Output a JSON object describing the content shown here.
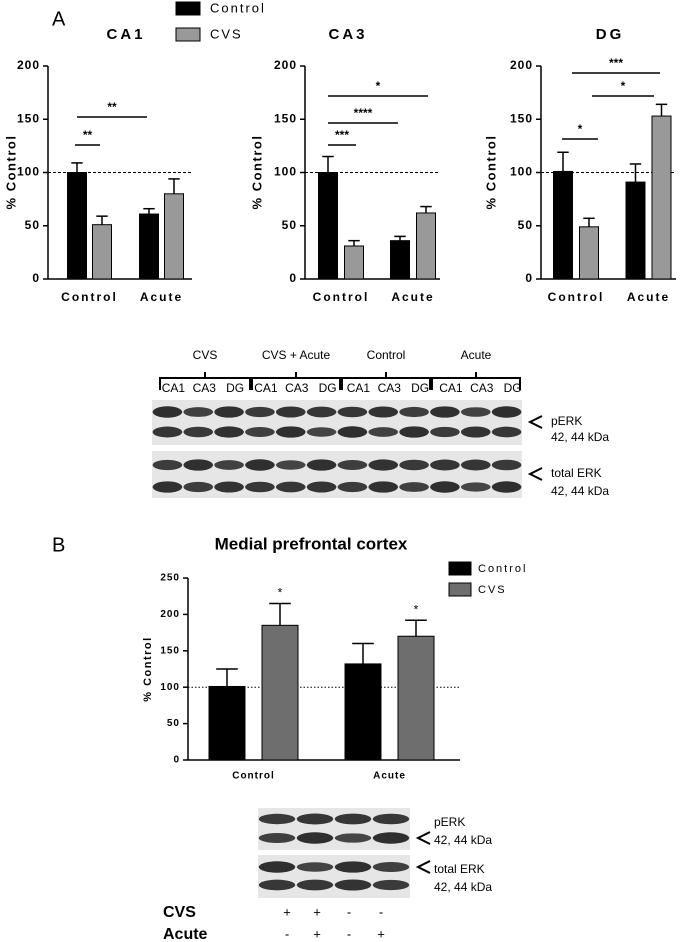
{
  "panels": [
    "A",
    "B"
  ],
  "chart_data": [
    {
      "type": "bar",
      "title": "CA1",
      "ylabel": "% Control",
      "categories": [
        "Control",
        "Acute"
      ],
      "series": [
        {
          "name": "Control",
          "color": "#000000",
          "values": [
            100,
            61
          ],
          "errors": [
            9,
            5
          ]
        },
        {
          "name": "CVS",
          "color": "#999999",
          "values": [
            51,
            80
          ],
          "errors": [
            8,
            14
          ]
        }
      ],
      "ylim": [
        0,
        200
      ],
      "yticks": [
        0,
        50,
        100,
        150,
        200
      ],
      "hline": 100,
      "legend": true,
      "significance": [
        "**",
        "**"
      ]
    },
    {
      "type": "bar",
      "title": "CA3",
      "ylabel": "% Control",
      "categories": [
        "Control",
        "Acute"
      ],
      "series": [
        {
          "color": "#000000",
          "values": [
            100,
            36
          ],
          "errors": [
            15,
            4
          ]
        },
        {
          "color": "#999999",
          "values": [
            31,
            62
          ],
          "errors": [
            5,
            6
          ]
        }
      ],
      "ylim": [
        0,
        200
      ],
      "yticks": [
        0,
        50,
        100,
        150,
        200
      ],
      "hline": 100,
      "legend": false,
      "significance": [
        "***",
        "****",
        "*"
      ]
    },
    {
      "type": "bar",
      "title": "DG",
      "ylabel": "% Control",
      "categories": [
        "Control",
        "Acute"
      ],
      "series": [
        {
          "color": "#000000",
          "values": [
            101,
            91
          ],
          "errors": [
            18,
            17
          ]
        },
        {
          "color": "#999999",
          "values": [
            49,
            153
          ],
          "errors": [
            8,
            11
          ]
        }
      ],
      "ylim": [
        0,
        200
      ],
      "yticks": [
        0,
        50,
        100,
        150,
        200
      ],
      "hline": 100,
      "legend": false,
      "significance": [
        "*",
        "*",
        "***"
      ]
    },
    {
      "type": "bar",
      "title": "Medial prefrontal cortex",
      "ylabel": "% Control",
      "categories": [
        "Control",
        "Acute"
      ],
      "series": [
        {
          "name": "Control",
          "color": "#000000",
          "values": [
            101,
            132
          ],
          "errors": [
            24,
            28
          ]
        },
        {
          "name": "CVS",
          "color": "#6e6e6e",
          "values": [
            185,
            170
          ],
          "errors": [
            30,
            22
          ]
        }
      ],
      "ylim": [
        0,
        250
      ],
      "yticks": [
        0,
        50,
        100,
        150,
        200,
        250
      ],
      "hline": 100,
      "legend": true,
      "annotations": [
        "*",
        "*"
      ]
    }
  ],
  "blot_a": {
    "groups": [
      "CVS",
      "CVS + Acute",
      "Control",
      "Acute"
    ],
    "lanes": [
      "CA1",
      "CA3",
      "DG",
      "CA1",
      "CA3",
      "DG",
      "CA1",
      "CA3",
      "DG",
      "CA1",
      "CA3",
      "DG"
    ],
    "bands": [
      {
        "name": "pERK",
        "size": "42, 44 kDa"
      },
      {
        "name": "total ERK",
        "size": "42, 44 kDa"
      }
    ]
  },
  "blot_b": {
    "bands": [
      {
        "name": "pERK",
        "size": "42, 44 kDa"
      },
      {
        "name": "total ERK",
        "size": "42, 44 kDa"
      }
    ]
  },
  "treatment_table": {
    "rows": [
      {
        "label": "CVS",
        "cells": [
          "+",
          "+",
          "-",
          "-"
        ]
      },
      {
        "label": "Acute",
        "cells": [
          "-",
          "+",
          "-",
          "+"
        ]
      }
    ]
  }
}
